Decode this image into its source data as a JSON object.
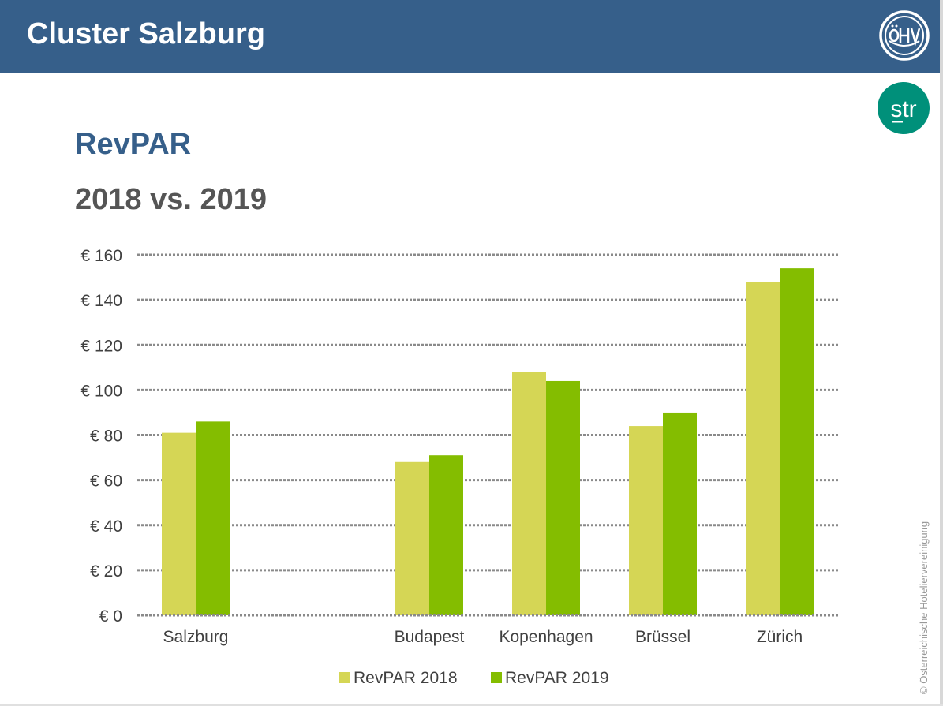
{
  "header": {
    "title": "Cluster Salzburg"
  },
  "logos": {
    "oehv": "öhv-logo",
    "str": "str"
  },
  "headings": {
    "line1": "RevPAR",
    "line2": "2018 vs. 2019"
  },
  "copyright": "© Österreichische Hoteliervereinigung",
  "colors": {
    "header_bg": "#365f8a",
    "series_2018": "#d5d655",
    "series_2019": "#84bd00",
    "str_green": "#00907a",
    "grid": "#8a8a8a"
  },
  "chart_data": {
    "type": "bar",
    "categories": [
      "Salzburg",
      "",
      "Budapest",
      "Kopenhagen",
      "Brüssel",
      "Zürich"
    ],
    "series": [
      {
        "name": "RevPAR 2018",
        "values": [
          81,
          null,
          68,
          108,
          84,
          148
        ]
      },
      {
        "name": "RevPAR 2019",
        "values": [
          86,
          null,
          71,
          104,
          90,
          154
        ]
      }
    ],
    "yticks": [
      "€ 0",
      "€ 20",
      "€ 40",
      "€ 60",
      "€ 80",
      "€ 100",
      "€ 120",
      "€ 140",
      "€ 160"
    ],
    "ylim": [
      0,
      160
    ],
    "grid": true,
    "legend": "bottom-center"
  }
}
